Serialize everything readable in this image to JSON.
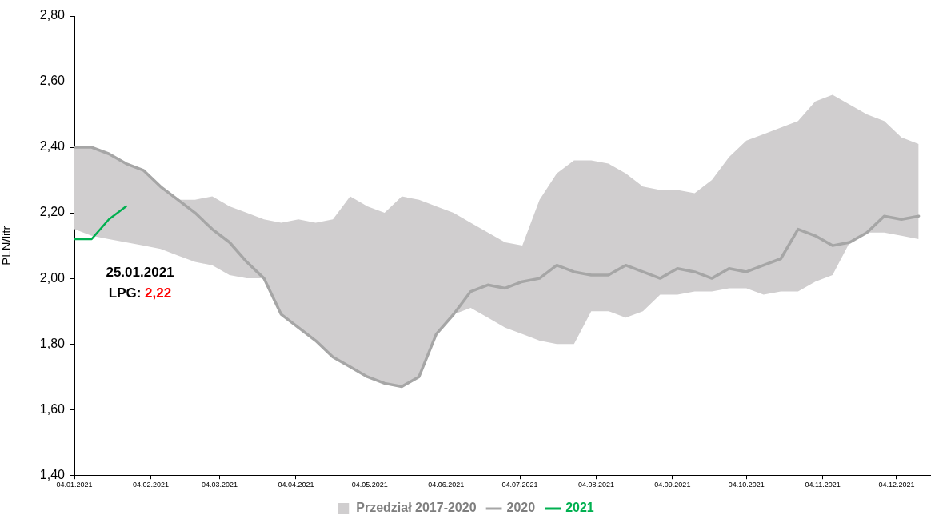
{
  "chart_data": {
    "type": "line",
    "ylabel": "PLN/litr",
    "legend": "bottom",
    "grid": false,
    "marker": "none",
    "line_style": "solid",
    "x": [
      "2021-01-04",
      "2021-01-11",
      "2021-01-18",
      "2021-01-25",
      "2021-02-01",
      "2021-02-08",
      "2021-02-15",
      "2021-02-22",
      "2021-03-01",
      "2021-03-08",
      "2021-03-15",
      "2021-03-22",
      "2021-03-29",
      "2021-04-05",
      "2021-04-12",
      "2021-04-19",
      "2021-04-26",
      "2021-05-03",
      "2021-05-10",
      "2021-05-17",
      "2021-05-24",
      "2021-05-31",
      "2021-06-07",
      "2021-06-14",
      "2021-06-21",
      "2021-06-28",
      "2021-07-05",
      "2021-07-12",
      "2021-07-19",
      "2021-07-26",
      "2021-08-02",
      "2021-08-09",
      "2021-08-16",
      "2021-08-23",
      "2021-08-30",
      "2021-09-06",
      "2021-09-13",
      "2021-09-20",
      "2021-09-27",
      "2021-10-04",
      "2021-10-11",
      "2021-10-18",
      "2021-10-25",
      "2021-11-01",
      "2021-11-08",
      "2021-11-15",
      "2021-11-22",
      "2021-11-29",
      "2021-12-06",
      "2021-12-13"
    ],
    "series": [
      {
        "name": "Przedział 2017-2020",
        "type": "area",
        "color": "#d0cecf",
        "values": [
          null,
          null,
          null,
          null,
          null,
          null,
          null,
          null,
          null,
          null,
          null,
          null,
          null,
          null,
          null,
          null,
          null,
          null,
          null,
          null,
          null,
          null,
          null,
          null,
          null,
          null,
          null,
          null,
          null,
          null,
          null,
          null,
          null,
          null,
          null,
          null,
          null,
          null,
          null,
          null,
          null,
          null,
          null,
          null,
          null,
          null,
          null,
          null,
          null,
          null
        ],
        "upper": [
          2.4,
          2.4,
          2.38,
          2.35,
          2.33,
          2.28,
          2.24,
          2.24,
          2.25,
          2.22,
          2.2,
          2.18,
          2.17,
          2.18,
          2.17,
          2.18,
          2.25,
          2.22,
          2.2,
          2.25,
          2.24,
          2.22,
          2.2,
          2.17,
          2.14,
          2.11,
          2.1,
          2.24,
          2.32,
          2.36,
          2.36,
          2.35,
          2.32,
          2.28,
          2.27,
          2.27,
          2.26,
          2.3,
          2.37,
          2.42,
          2.44,
          2.46,
          2.48,
          2.54,
          2.56,
          2.53,
          2.5,
          2.48,
          2.43,
          2.41
        ],
        "lower": [
          2.15,
          2.13,
          2.12,
          2.11,
          2.1,
          2.09,
          2.07,
          2.05,
          2.04,
          2.01,
          2.0,
          2.0,
          1.89,
          1.85,
          1.81,
          1.76,
          1.73,
          1.7,
          1.68,
          1.67,
          1.7,
          1.83,
          1.89,
          1.91,
          1.88,
          1.85,
          1.83,
          1.81,
          1.8,
          1.8,
          1.9,
          1.9,
          1.88,
          1.9,
          1.95,
          1.95,
          1.96,
          1.96,
          1.97,
          1.97,
          1.95,
          1.96,
          1.96,
          1.99,
          2.01,
          2.11,
          2.14,
          2.14,
          2.13,
          2.12
        ]
      },
      {
        "name": "2020",
        "type": "line",
        "color": "#a6a6a6",
        "values": [
          2.4,
          2.4,
          2.38,
          2.35,
          2.33,
          2.28,
          2.24,
          2.2,
          2.15,
          2.11,
          2.05,
          2.0,
          1.89,
          1.85,
          1.81,
          1.76,
          1.73,
          1.7,
          1.68,
          1.67,
          1.7,
          1.83,
          1.89,
          1.96,
          1.98,
          1.97,
          1.99,
          2.0,
          2.04,
          2.02,
          2.01,
          2.01,
          2.04,
          2.02,
          2.0,
          2.03,
          2.02,
          2.0,
          2.03,
          2.02,
          2.04,
          2.06,
          2.15,
          2.13,
          2.1,
          2.11,
          2.14,
          2.19,
          2.18,
          2.19
        ]
      },
      {
        "name": "2021",
        "type": "line",
        "color": "#00b050",
        "x": [
          "2021-01-04",
          "2021-01-11",
          "2021-01-18",
          "2021-01-25"
        ],
        "values": [
          2.12,
          2.12,
          2.18,
          2.22
        ]
      }
    ],
    "xlim": [
      "2021-01-04",
      "2021-12-18"
    ],
    "xticks": [
      {
        "value": "2021-01-04",
        "label": "04.01.2021"
      },
      {
        "value": "2021-02-04",
        "label": "04.02.2021"
      },
      {
        "value": "2021-03-04",
        "label": "04.03.2021"
      },
      {
        "value": "2021-04-04",
        "label": "04.04.2021"
      },
      {
        "value": "2021-05-04",
        "label": "04.05.2021"
      },
      {
        "value": "2021-06-04",
        "label": "04.06.2021"
      },
      {
        "value": "2021-07-04",
        "label": "04.07.2021"
      },
      {
        "value": "2021-08-04",
        "label": "04.08.2021"
      },
      {
        "value": "2021-09-04",
        "label": "04.09.2021"
      },
      {
        "value": "2021-10-04",
        "label": "04.10.2021"
      },
      {
        "value": "2021-11-04",
        "label": "04.11.2021"
      },
      {
        "value": "2021-12-04",
        "label": "04.12.2021"
      }
    ],
    "ylim": [
      1.4,
      2.8
    ],
    "yticks": [
      {
        "value": 1.4,
        "label": "1,40"
      },
      {
        "value": 1.6,
        "label": "1,60"
      },
      {
        "value": 1.8,
        "label": "1,80"
      },
      {
        "value": 2.0,
        "label": "2,00"
      },
      {
        "value": 2.2,
        "label": "2,20"
      },
      {
        "value": 2.4,
        "label": "2,40"
      },
      {
        "value": 2.6,
        "label": "2,60"
      },
      {
        "value": 2.8,
        "label": "2,80"
      }
    ],
    "annotations": [
      "25.01.2021",
      "LPG: 2,22"
    ]
  }
}
